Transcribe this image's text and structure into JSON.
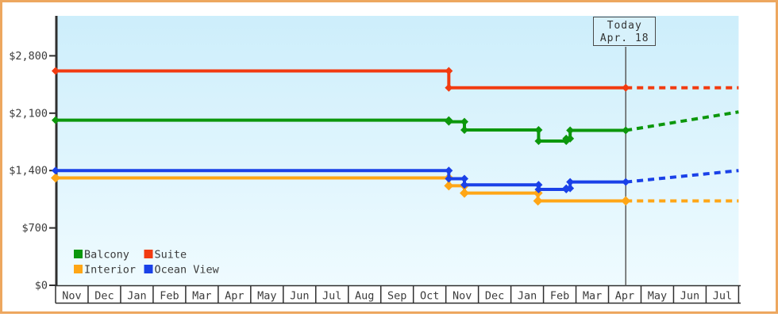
{
  "frame": {
    "border_color": "#eda75f",
    "background": "#ffffff"
  },
  "chart_data": {
    "type": "line",
    "title": "",
    "description": "Cruise cabin price history by category with dashed forecast after today",
    "x_unit": "months_from_first_Nov",
    "x_axis": {
      "range": [
        0,
        21
      ],
      "labels": [
        "Nov",
        "Dec",
        "Jan",
        "Feb",
        "Mar",
        "Apr",
        "May",
        "Jun",
        "Jul",
        "Aug",
        "Sep",
        "Oct",
        "Nov",
        "Dec",
        "Jan",
        "Feb",
        "Mar",
        "Apr",
        "May",
        "Jun",
        "Jul"
      ]
    },
    "y_axis": {
      "ylim": [
        0,
        3300
      ],
      "grid": false,
      "ticks": [
        {
          "label": "$0",
          "value": 0
        },
        {
          "label": "$700",
          "value": 700
        },
        {
          "label": "$1,400",
          "value": 1400
        },
        {
          "label": "$2,100",
          "value": 2100
        },
        {
          "label": "$2,800",
          "value": 2800
        }
      ]
    },
    "today": {
      "label1": "Today",
      "label2": "Apr. 18",
      "x_months": 17.53
    },
    "series": [
      {
        "name": "Suite",
        "color": "#f23b10",
        "marker": "diamond",
        "marker_size": 5,
        "points": [
          [
            0,
            2615
          ],
          [
            12.09,
            2615
          ],
          [
            12.09,
            2410
          ],
          [
            17.53,
            2410
          ]
        ],
        "forecast": [
          [
            17.53,
            2410
          ],
          [
            21,
            2410
          ]
        ]
      },
      {
        "name": "Balcony",
        "color": "#0c970c",
        "marker": "diamond",
        "marker_size": 5,
        "points": [
          [
            0,
            2015
          ],
          [
            12.09,
            2015
          ],
          [
            12.09,
            1995
          ],
          [
            12.57,
            1995
          ],
          [
            12.57,
            1895
          ],
          [
            14.85,
            1895
          ],
          [
            14.85,
            1760
          ],
          [
            15.7,
            1760
          ],
          [
            15.7,
            1790
          ],
          [
            15.82,
            1790
          ],
          [
            15.82,
            1890
          ],
          [
            17.53,
            1890
          ]
        ],
        "forecast": [
          [
            17.53,
            1890
          ],
          [
            21,
            2115
          ]
        ]
      },
      {
        "name": "Interior",
        "color": "#ffa616",
        "marker": "diamond",
        "marker_size": 6,
        "points": [
          [
            0,
            1310
          ],
          [
            12.09,
            1310
          ],
          [
            12.09,
            1215
          ],
          [
            12.57,
            1215
          ],
          [
            12.57,
            1125
          ],
          [
            14.83,
            1125
          ],
          [
            14.83,
            1030
          ],
          [
            17.53,
            1030
          ]
        ],
        "forecast": [
          [
            17.53,
            1030
          ],
          [
            21,
            1030
          ]
        ]
      },
      {
        "name": "Ocean View",
        "color": "#1a41e8",
        "marker": "diamond",
        "marker_size": 5,
        "points": [
          [
            0,
            1400
          ],
          [
            12.09,
            1400
          ],
          [
            12.09,
            1300
          ],
          [
            12.57,
            1300
          ],
          [
            12.57,
            1225
          ],
          [
            14.85,
            1225
          ],
          [
            14.85,
            1170
          ],
          [
            15.7,
            1170
          ],
          [
            15.7,
            1183
          ],
          [
            15.82,
            1183
          ],
          [
            15.82,
            1260
          ],
          [
            17.53,
            1260
          ]
        ],
        "forecast": [
          [
            17.53,
            1260
          ],
          [
            21,
            1400
          ]
        ]
      }
    ],
    "legend": {
      "position": "bottom-left",
      "items": [
        "Balcony",
        "Suite",
        "Interior",
        "Ocean View"
      ]
    },
    "colors": {
      "plot_bg_top": "#cdeefb",
      "plot_bg_bottom": "#effbff",
      "axis": "#2f2f2f",
      "text": "#3b3b3b",
      "today_line": "#5a5a5a"
    }
  }
}
